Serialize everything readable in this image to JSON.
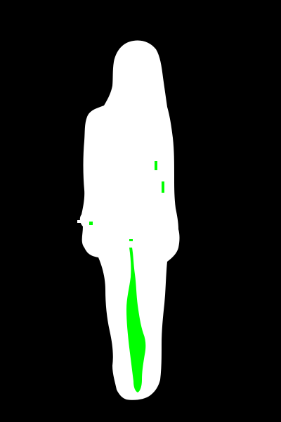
{
  "image": {
    "background_color": "#000000",
    "regions": [
      {
        "label": "",
        "role": "person-silhouette",
        "color": "#FFFFFF"
      },
      {
        "label": "",
        "role": "highlighted-region",
        "color": "#00FF00"
      }
    ]
  }
}
